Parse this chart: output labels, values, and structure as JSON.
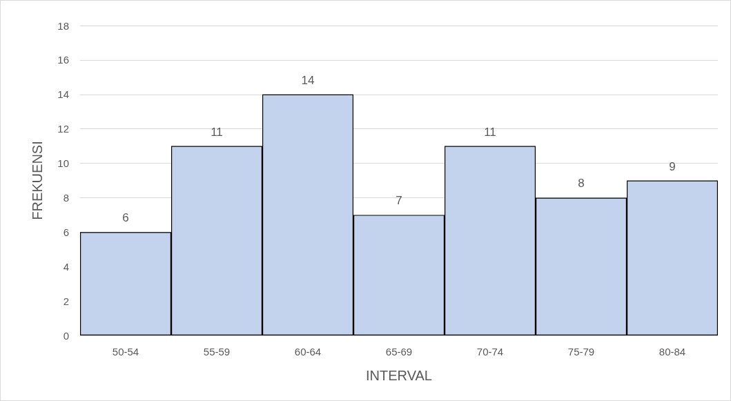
{
  "chart_data": {
    "type": "bar",
    "xlabel": "INTERVAL",
    "ylabel": "FREKUENSI",
    "categories": [
      "50-54",
      "55-59",
      "60-64",
      "65-69",
      "70-74",
      "75-79",
      "80-84"
    ],
    "values": [
      6,
      11,
      14,
      7,
      11,
      8,
      9
    ],
    "color": "#c3d3ee",
    "ylim": [
      0,
      18
    ],
    "yticks": [
      0,
      2,
      4,
      6,
      8,
      10,
      12,
      14,
      16,
      18
    ],
    "grid": "y",
    "data_labels": true
  }
}
